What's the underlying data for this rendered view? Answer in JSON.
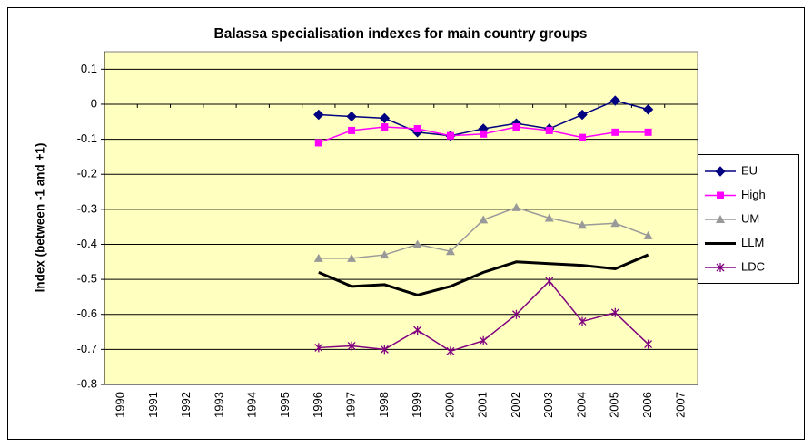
{
  "chart_data": {
    "type": "line",
    "title": "Balassa specialisation indexes for main country groups",
    "y_label": "Index (between -1 and +1)",
    "categories": [
      "1990",
      "1991",
      "1992",
      "1993",
      "1994",
      "1995",
      "1996",
      "1997",
      "1998",
      "1999",
      "2000",
      "2001",
      "2002",
      "2003",
      "2004",
      "2005",
      "2006",
      "2007"
    ],
    "ylim": [
      -0.8,
      0.15
    ],
    "yticks": [
      0.1,
      0,
      -0.1,
      -0.2,
      -0.3,
      -0.4,
      -0.5,
      -0.6,
      -0.7,
      -0.8
    ],
    "grid": true,
    "legend": "right",
    "series": [
      {
        "name": "EU",
        "color": "#000080",
        "marker": "diamond",
        "values": [
          null,
          null,
          null,
          null,
          null,
          null,
          -0.03,
          -0.035,
          -0.04,
          -0.08,
          -0.09,
          -0.07,
          -0.055,
          -0.07,
          -0.03,
          0.01,
          -0.015,
          null
        ]
      },
      {
        "name": "High",
        "color": "#ff00ff",
        "marker": "square",
        "values": [
          null,
          null,
          null,
          null,
          null,
          null,
          -0.11,
          -0.075,
          -0.065,
          -0.07,
          -0.09,
          -0.085,
          -0.065,
          -0.075,
          -0.095,
          -0.08,
          -0.08,
          null
        ]
      },
      {
        "name": "UM",
        "color": "#999999",
        "marker": "triangle",
        "values": [
          null,
          null,
          null,
          null,
          null,
          null,
          -0.44,
          -0.44,
          -0.43,
          -0.4,
          -0.42,
          -0.33,
          -0.295,
          -0.325,
          -0.345,
          -0.34,
          -0.375,
          null
        ]
      },
      {
        "name": "LLM",
        "color": "#000000",
        "marker": "none",
        "values": [
          null,
          null,
          null,
          null,
          null,
          null,
          -0.48,
          -0.52,
          -0.515,
          -0.545,
          -0.52,
          -0.48,
          -0.45,
          -0.455,
          -0.46,
          -0.47,
          -0.43,
          null
        ]
      },
      {
        "name": "LDC",
        "color": "#800080",
        "marker": "star",
        "values": [
          null,
          null,
          null,
          null,
          null,
          null,
          -0.695,
          -0.69,
          -0.7,
          -0.645,
          -0.705,
          -0.675,
          -0.6,
          -0.505,
          -0.62,
          -0.595,
          -0.685,
          null
        ]
      }
    ]
  }
}
